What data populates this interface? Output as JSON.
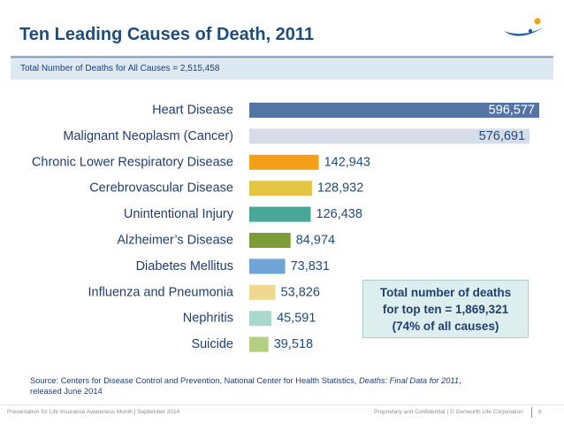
{
  "header": {
    "title": "Ten Leading Causes of Death, 2011",
    "subtitle": "Total Number of Deaths for All Causes = 2,515,458"
  },
  "callout": {
    "line1": "Total number of deaths",
    "line2": "for top ten = 1,869,321",
    "line3": "(74% of all causes)"
  },
  "source": {
    "prefix": "Source: Centers for Disease Control and Prevention, National Center for Health Statistics, ",
    "italic": "Deaths: Final Data for 2011",
    "suffix": ",",
    "line2": "released June 2014"
  },
  "footer": {
    "left": "Presentation for Life Insurance Awareness Month | September 2014",
    "right": "Proprietary and Confidential   |   © Genworth Life Corporation",
    "page": "6"
  },
  "chart_data": {
    "type": "bar",
    "orientation": "horizontal",
    "title": "Ten Leading Causes of Death, 2011",
    "xlabel": "",
    "ylabel": "",
    "xlim": [
      0,
      596577
    ],
    "categories": [
      "Heart Disease",
      "Malignant Neoplasm (Cancer)",
      "Chronic Lower Respiratory Disease",
      "Cerebrovascular Disease",
      "Unintentional Injury",
      "Alzheimer’s Disease",
      "Diabetes Mellitus",
      "Influenza and Pneumonia",
      "Nephritis",
      "Suicide"
    ],
    "values": [
      596577,
      576691,
      142943,
      128932,
      126438,
      84974,
      73831,
      53826,
      45591,
      39518
    ],
    "value_labels": [
      "596,577",
      "576,691",
      "142,943",
      "128,932",
      "126,438",
      "84,974",
      "73,831",
      "53,826",
      "45,591",
      "39,518"
    ],
    "colors": [
      "#5374a4",
      "#d6dcea",
      "#f6a01a",
      "#e3c443",
      "#4aa797",
      "#7d9b36",
      "#6fa5d6",
      "#efd98f",
      "#a9d8cd",
      "#b2d080"
    ],
    "label_colors": [
      "#ffffff",
      "#1f4e79",
      "#1f4e79",
      "#1f4e79",
      "#1f4e79",
      "#1f4e79",
      "#1f4e79",
      "#1f4e79",
      "#1f4e79",
      "#1f4e79"
    ],
    "grid": false
  }
}
